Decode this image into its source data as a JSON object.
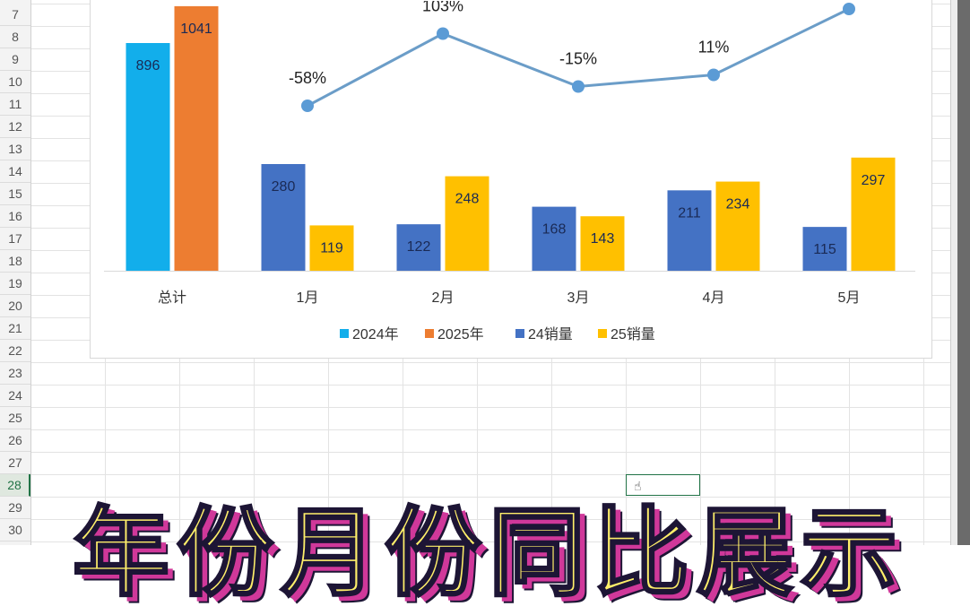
{
  "spreadsheet": {
    "row_numbers": [
      "7",
      "8",
      "9",
      "10",
      "11",
      "12",
      "13",
      "14",
      "15",
      "16",
      "17",
      "18",
      "19",
      "20",
      "21",
      "22",
      "23",
      "24",
      "25",
      "26",
      "27",
      "28",
      "29",
      "30"
    ],
    "selected_row": "28"
  },
  "caption": "年份月份同比展示",
  "chart_data": {
    "type": "bar",
    "categories": [
      "总计",
      "1月",
      "2月",
      "3月",
      "4月",
      "5月"
    ],
    "series": [
      {
        "name": "2024年",
        "color": "#12AEEB",
        "axis": "primary",
        "values": [
          896,
          null,
          null,
          null,
          null,
          null
        ],
        "labels": [
          "896",
          null,
          null,
          null,
          null,
          null
        ]
      },
      {
        "name": "2025年",
        "color": "#ED7D31",
        "axis": "primary",
        "values": [
          1041,
          null,
          null,
          null,
          null,
          null
        ],
        "labels": [
          "1041",
          null,
          null,
          null,
          null,
          null
        ]
      },
      {
        "name": "24销量",
        "color": "#4472C4",
        "axis": "secondary",
        "values": [
          null,
          280,
          122,
          168,
          211,
          115
        ],
        "labels": [
          null,
          "280",
          "122",
          "168",
          "211",
          "115"
        ]
      },
      {
        "name": "25销量",
        "color": "#FFC000",
        "axis": "secondary",
        "values": [
          null,
          119,
          248,
          143,
          234,
          297
        ],
        "labels": [
          null,
          "119",
          "248",
          "143",
          "234",
          "297"
        ]
      }
    ],
    "growth_line": {
      "type": "line",
      "color": "#6B9DC8",
      "marker_color": "#5B9BD5",
      "values_pct": [
        null,
        -58,
        103,
        -15,
        11,
        158
      ],
      "labels": [
        null,
        "-58%",
        "103%",
        "-15%",
        "11%",
        null
      ]
    },
    "legend": [
      "2024年",
      "2025年",
      "24销量",
      "25销量"
    ],
    "legend_position": "bottom",
    "grid": false
  }
}
